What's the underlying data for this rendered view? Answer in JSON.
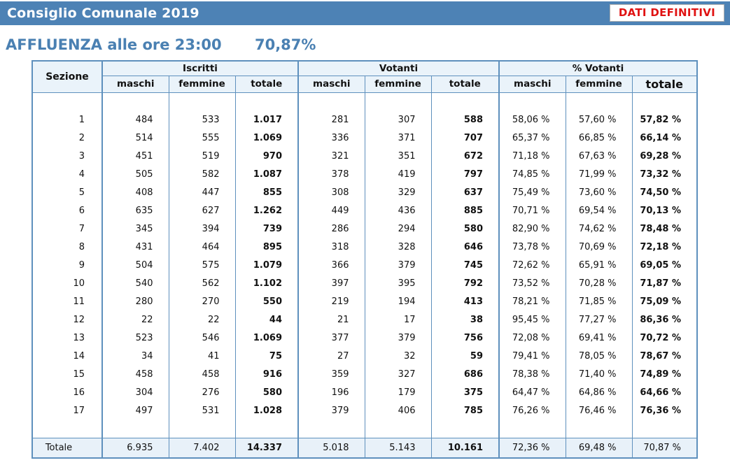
{
  "header": {
    "title": "Consiglio Comunale 2019",
    "badge": "DATI DEFINITIVI"
  },
  "subtitle": {
    "label": "AFFLUENZA alle ore 23:00",
    "value": "70,87%"
  },
  "colors": {
    "titlebar_blue": "#4d82b5",
    "accent_blue": "#4a80b2",
    "badge_red": "#e01212",
    "table_border_blue": "#5e90bd",
    "header_bg": "#eaf3fa",
    "total_row_bg": "#e8f1f9"
  },
  "table": {
    "corner_header": "Sezione",
    "groups": [
      {
        "label": "Iscritti",
        "sub": [
          "maschi",
          "femmine",
          "totale"
        ]
      },
      {
        "label": "Votanti",
        "sub": [
          "maschi",
          "femmine",
          "totale"
        ]
      },
      {
        "label": "% Votanti",
        "sub": [
          "maschi",
          "femmine",
          "totale"
        ]
      }
    ],
    "rows": [
      {
        "sezione": "1",
        "iscritti": [
          "484",
          "533",
          "1.017"
        ],
        "votanti": [
          "281",
          "307",
          "588"
        ],
        "perc": [
          "58,06 %",
          "57,60 %",
          "57,82 %"
        ]
      },
      {
        "sezione": "2",
        "iscritti": [
          "514",
          "555",
          "1.069"
        ],
        "votanti": [
          "336",
          "371",
          "707"
        ],
        "perc": [
          "65,37 %",
          "66,85 %",
          "66,14 %"
        ]
      },
      {
        "sezione": "3",
        "iscritti": [
          "451",
          "519",
          "970"
        ],
        "votanti": [
          "321",
          "351",
          "672"
        ],
        "perc": [
          "71,18 %",
          "67,63 %",
          "69,28 %"
        ]
      },
      {
        "sezione": "4",
        "iscritti": [
          "505",
          "582",
          "1.087"
        ],
        "votanti": [
          "378",
          "419",
          "797"
        ],
        "perc": [
          "74,85 %",
          "71,99 %",
          "73,32 %"
        ]
      },
      {
        "sezione": "5",
        "iscritti": [
          "408",
          "447",
          "855"
        ],
        "votanti": [
          "308",
          "329",
          "637"
        ],
        "perc": [
          "75,49 %",
          "73,60 %",
          "74,50 %"
        ]
      },
      {
        "sezione": "6",
        "iscritti": [
          "635",
          "627",
          "1.262"
        ],
        "votanti": [
          "449",
          "436",
          "885"
        ],
        "perc": [
          "70,71 %",
          "69,54 %",
          "70,13 %"
        ]
      },
      {
        "sezione": "7",
        "iscritti": [
          "345",
          "394",
          "739"
        ],
        "votanti": [
          "286",
          "294",
          "580"
        ],
        "perc": [
          "82,90 %",
          "74,62 %",
          "78,48 %"
        ]
      },
      {
        "sezione": "8",
        "iscritti": [
          "431",
          "464",
          "895"
        ],
        "votanti": [
          "318",
          "328",
          "646"
        ],
        "perc": [
          "73,78 %",
          "70,69 %",
          "72,18 %"
        ]
      },
      {
        "sezione": "9",
        "iscritti": [
          "504",
          "575",
          "1.079"
        ],
        "votanti": [
          "366",
          "379",
          "745"
        ],
        "perc": [
          "72,62 %",
          "65,91 %",
          "69,05 %"
        ]
      },
      {
        "sezione": "10",
        "iscritti": [
          "540",
          "562",
          "1.102"
        ],
        "votanti": [
          "397",
          "395",
          "792"
        ],
        "perc": [
          "73,52 %",
          "70,28 %",
          "71,87 %"
        ]
      },
      {
        "sezione": "11",
        "iscritti": [
          "280",
          "270",
          "550"
        ],
        "votanti": [
          "219",
          "194",
          "413"
        ],
        "perc": [
          "78,21 %",
          "71,85 %",
          "75,09 %"
        ]
      },
      {
        "sezione": "12",
        "iscritti": [
          "22",
          "22",
          "44"
        ],
        "votanti": [
          "21",
          "17",
          "38"
        ],
        "perc": [
          "95,45 %",
          "77,27 %",
          "86,36 %"
        ]
      },
      {
        "sezione": "13",
        "iscritti": [
          "523",
          "546",
          "1.069"
        ],
        "votanti": [
          "377",
          "379",
          "756"
        ],
        "perc": [
          "72,08 %",
          "69,41 %",
          "70,72 %"
        ]
      },
      {
        "sezione": "14",
        "iscritti": [
          "34",
          "41",
          "75"
        ],
        "votanti": [
          "27",
          "32",
          "59"
        ],
        "perc": [
          "79,41 %",
          "78,05 %",
          "78,67 %"
        ]
      },
      {
        "sezione": "15",
        "iscritti": [
          "458",
          "458",
          "916"
        ],
        "votanti": [
          "359",
          "327",
          "686"
        ],
        "perc": [
          "78,38 %",
          "71,40 %",
          "74,89 %"
        ]
      },
      {
        "sezione": "16",
        "iscritti": [
          "304",
          "276",
          "580"
        ],
        "votanti": [
          "196",
          "179",
          "375"
        ],
        "perc": [
          "64,47 %",
          "64,86 %",
          "64,66 %"
        ]
      },
      {
        "sezione": "17",
        "iscritti": [
          "497",
          "531",
          "1.028"
        ],
        "votanti": [
          "379",
          "406",
          "785"
        ],
        "perc": [
          "76,26 %",
          "76,46 %",
          "76,36 %"
        ]
      }
    ],
    "total_row": {
      "label": "Totale",
      "iscritti": [
        "6.935",
        "7.402",
        "14.337"
      ],
      "votanti": [
        "5.018",
        "5.143",
        "10.161"
      ],
      "perc": [
        "72,36 %",
        "69,48 %",
        "70,87 %"
      ]
    }
  }
}
